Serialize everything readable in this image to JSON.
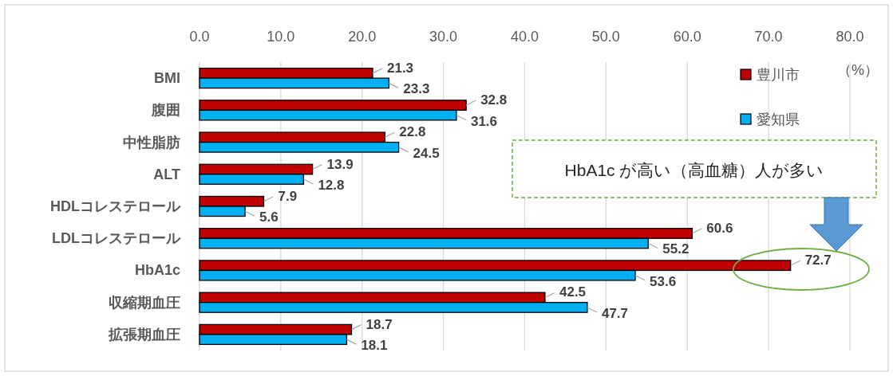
{
  "chart_data": {
    "type": "bar",
    "orientation": "horizontal",
    "categories": [
      "BMI",
      "腹囲",
      "中性脂肪",
      "ALT",
      "HDLコレステロール",
      "LDLコレステロール",
      "HbA1c",
      "収縮期血圧",
      "拡張期血圧"
    ],
    "series": [
      {
        "name": "豊川市",
        "color": "#c00000",
        "values": [
          21.3,
          32.8,
          22.8,
          13.9,
          7.9,
          60.6,
          72.7,
          42.5,
          18.7
        ]
      },
      {
        "name": "愛知県",
        "color": "#00b0f0",
        "values": [
          23.3,
          31.6,
          24.5,
          12.8,
          5.6,
          55.2,
          53.6,
          47.7,
          18.1
        ]
      }
    ],
    "xlim": [
      0,
      80
    ],
    "xticks": [
      {
        "value": 0,
        "label": "0.0"
      },
      {
        "value": 10,
        "label": "10.0"
      },
      {
        "value": 20,
        "label": "20.0"
      },
      {
        "value": 30,
        "label": "30.0"
      },
      {
        "value": 40,
        "label": "40.0"
      },
      {
        "value": 50,
        "label": "50.0"
      },
      {
        "value": 60,
        "label": "60.0"
      },
      {
        "value": 70,
        "label": "70.0"
      },
      {
        "value": 80,
        "label": "80.0"
      }
    ],
    "xlabel": "（%）",
    "grid": "x",
    "legend": "top right",
    "data_labels": true,
    "annotations": [
      "HbA1c が高い（高血糖）人が多い"
    ]
  }
}
